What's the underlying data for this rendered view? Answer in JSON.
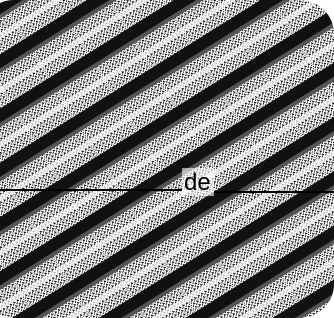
{
  "label": "de"
}
